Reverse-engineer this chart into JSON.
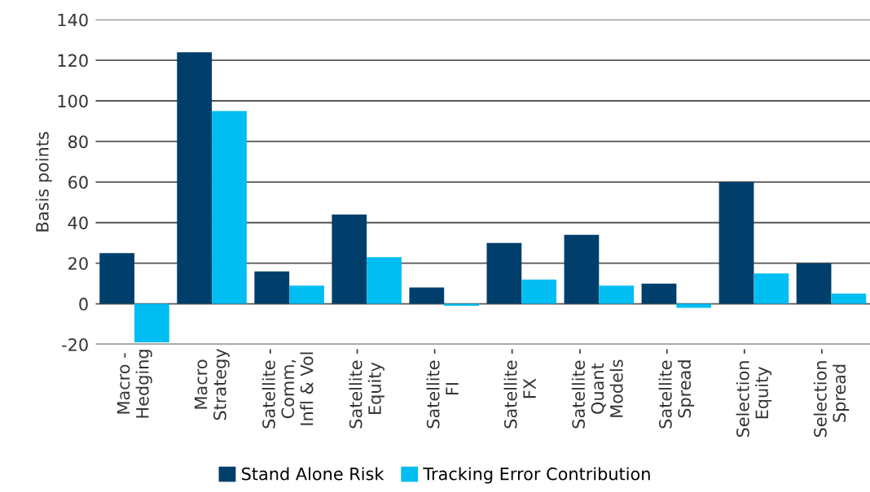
{
  "chart_data": {
    "type": "bar",
    "ylabel": "Basis points",
    "categories": [
      "Macro -\nHedging",
      "Macro\nStrategy",
      "Satellite -\nComm,\nInfl & Vol",
      "Satellite -\nEquity",
      "Satellite -\nFI",
      "Satellite -\nFX",
      "Satellite -\nQuant\nModels",
      "Satellite -\nSpread",
      "Selection -\nEquity",
      "Selection -\nSpread"
    ],
    "series": [
      {
        "name": "Stand Alone Risk",
        "color": "#003f6b",
        "values": [
          25,
          124,
          16,
          44,
          8,
          30,
          34,
          10,
          60,
          20
        ]
      },
      {
        "name": "Tracking Error Contribution",
        "color": "#00bdf2",
        "values": [
          -19,
          95,
          9,
          23,
          -1,
          12,
          9,
          -2,
          15,
          5
        ]
      }
    ],
    "ylim": [
      -20,
      140
    ],
    "yticks": [
      -20,
      0,
      20,
      40,
      60,
      80,
      100,
      120,
      140
    ],
    "grid": "y",
    "legend": "bottom"
  }
}
